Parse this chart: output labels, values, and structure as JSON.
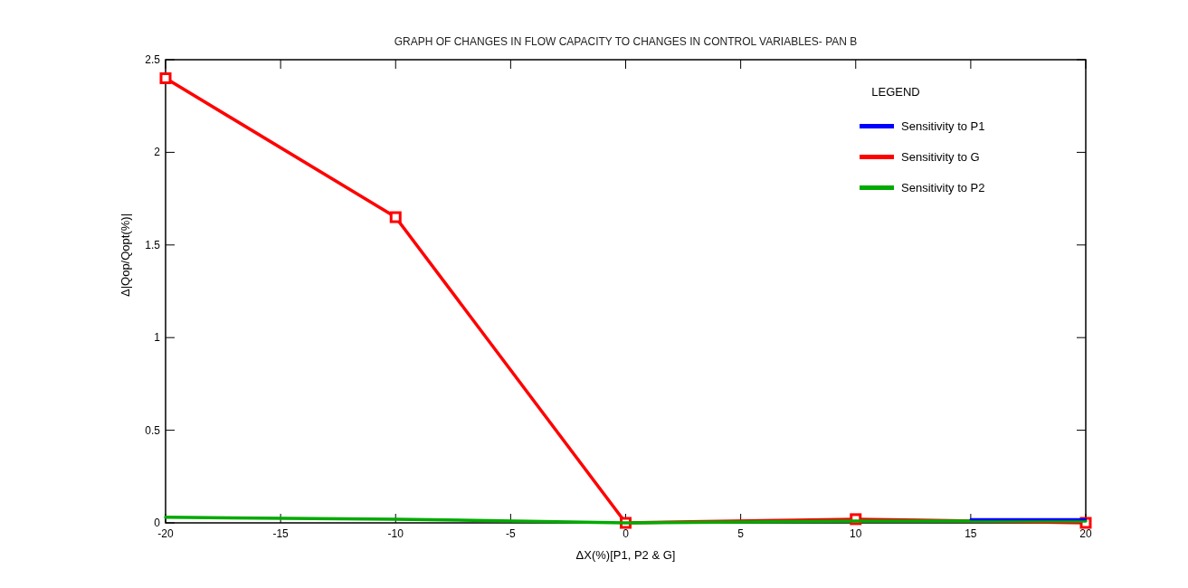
{
  "chart_data": {
    "type": "line",
    "title": "GRAPH OF CHANGES IN FLOW CAPACITY TO CHANGES IN CONTROL VARIABLES- PAN B",
    "xlabel": "ΔX(%)[P1, P2 & G]",
    "ylabel": "Δ|Qop/Qopt(%)|",
    "legend_title": "LEGEND",
    "x": [
      -20,
      -10,
      0,
      10,
      20
    ],
    "series": [
      {
        "name": "Sensitivity to P1",
        "color": "#0000ff",
        "x": [
          15,
          20
        ],
        "values": [
          0.02,
          0.02
        ],
        "marker": "none"
      },
      {
        "name": "Sensitivity to G",
        "color": "#ff0000",
        "values": [
          2.4,
          1.65,
          0,
          0.02,
          0
        ],
        "marker": "square"
      },
      {
        "name": "Sensitivity to P2",
        "color": "#00aa00",
        "values": [
          0.03,
          0.02,
          0,
          0.01,
          0.01
        ],
        "marker": "none"
      }
    ],
    "xlim": [
      -20,
      20
    ],
    "ylim": [
      0,
      2.5
    ],
    "xticks": [
      -20,
      -15,
      -10,
      -5,
      0,
      5,
      10,
      15,
      20
    ],
    "yticks": [
      0,
      0.5,
      1,
      1.5,
      2,
      2.5
    ],
    "grid": false,
    "legend": "top right",
    "line_style": "solid"
  }
}
